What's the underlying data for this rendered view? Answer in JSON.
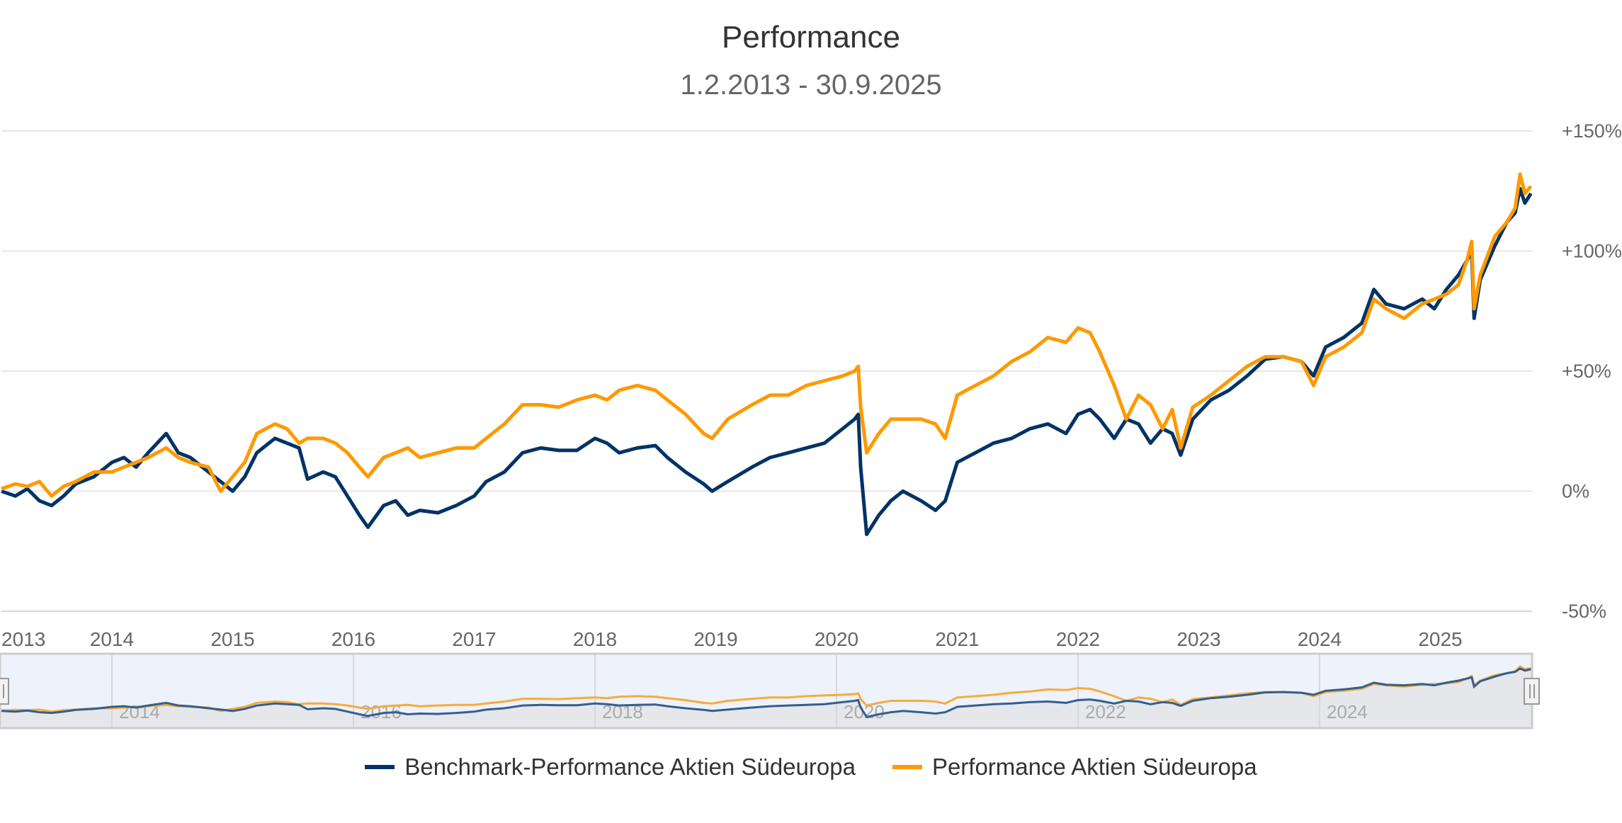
{
  "chart_data": {
    "type": "line",
    "title": "Performance",
    "subtitle": "1.2.2013 - 30.9.2025",
    "xlabel": "",
    "ylabel": "",
    "x_range": [
      2013.085,
      2025.75
    ],
    "ylim": [
      -50,
      150
    ],
    "y_ticks": [
      {
        "value": 150,
        "label": "+150%"
      },
      {
        "value": 100,
        "label": "+100%"
      },
      {
        "value": 50,
        "label": "+50%"
      },
      {
        "value": 0,
        "label": "0%"
      },
      {
        "value": -50,
        "label": "-50%"
      }
    ],
    "x_ticks": [
      "2013",
      "2014",
      "2015",
      "2016",
      "2017",
      "2018",
      "2019",
      "2020",
      "2021",
      "2022",
      "2023",
      "2024",
      "2025"
    ],
    "navigator_ticks": [
      "2014",
      "2016",
      "2018",
      "2020",
      "2022",
      "2024"
    ],
    "grid": true,
    "legend_position": "bottom-center",
    "series": [
      {
        "name": "Benchmark-Performance Aktien Südeuropa",
        "color": "#003366",
        "x": [
          2013.085,
          2013.2,
          2013.3,
          2013.4,
          2013.5,
          2013.6,
          2013.7,
          2013.85,
          2014.0,
          2014.1,
          2014.2,
          2014.3,
          2014.45,
          2014.55,
          2014.65,
          2014.8,
          2014.9,
          2015.0,
          2015.1,
          2015.2,
          2015.35,
          2015.45,
          2015.55,
          2015.62,
          2015.75,
          2015.85,
          2015.95,
          2016.05,
          2016.12,
          2016.25,
          2016.35,
          2016.45,
          2016.55,
          2016.7,
          2016.85,
          2017.0,
          2017.1,
          2017.25,
          2017.4,
          2017.55,
          2017.7,
          2017.85,
          2018.0,
          2018.1,
          2018.2,
          2018.35,
          2018.5,
          2018.6,
          2018.75,
          2018.9,
          2018.97,
          2019.1,
          2019.3,
          2019.45,
          2019.6,
          2019.75,
          2019.9,
          2020.05,
          2020.15,
          2020.18,
          2020.2,
          2020.25,
          2020.35,
          2020.45,
          2020.55,
          2020.7,
          2020.82,
          2020.9,
          2021.0,
          2021.15,
          2021.3,
          2021.45,
          2021.6,
          2021.75,
          2021.9,
          2022.0,
          2022.1,
          2022.18,
          2022.3,
          2022.4,
          2022.5,
          2022.6,
          2022.7,
          2022.78,
          2022.85,
          2022.95,
          2023.1,
          2023.25,
          2023.4,
          2023.55,
          2023.7,
          2023.85,
          2023.95,
          2024.05,
          2024.2,
          2024.35,
          2024.45,
          2024.55,
          2024.7,
          2024.85,
          2024.95,
          2025.05,
          2025.15,
          2025.22,
          2025.26,
          2025.28,
          2025.33,
          2025.45,
          2025.55,
          2025.62,
          2025.66,
          2025.7,
          2025.75
        ],
        "values": [
          0,
          -2,
          1,
          -4,
          -6,
          -2,
          3,
          6,
          12,
          14,
          10,
          16,
          24,
          16,
          14,
          8,
          4,
          0,
          6,
          16,
          22,
          20,
          18,
          5,
          8,
          6,
          -2,
          -10,
          -15,
          -6,
          -4,
          -10,
          -8,
          -9,
          -6,
          -2,
          4,
          8,
          16,
          18,
          17,
          17,
          22,
          20,
          16,
          18,
          19,
          14,
          8,
          3,
          0,
          4,
          10,
          14,
          16,
          18,
          20,
          26,
          30,
          32,
          10,
          -18,
          -10,
          -4,
          0,
          -4,
          -8,
          -4,
          12,
          16,
          20,
          22,
          26,
          28,
          24,
          32,
          34,
          30,
          22,
          30,
          28,
          20,
          26,
          24,
          15,
          30,
          38,
          42,
          48,
          55,
          56,
          54,
          48,
          60,
          64,
          70,
          84,
          78,
          76,
          80,
          76,
          84,
          90,
          96,
          100,
          72,
          88,
          102,
          112,
          116,
          126,
          120,
          124
        ]
      },
      {
        "name": "Performance Aktien Südeuropa",
        "color": "#FF9900",
        "x": [
          2013.085,
          2013.2,
          2013.3,
          2013.4,
          2013.5,
          2013.6,
          2013.7,
          2013.85,
          2014.0,
          2014.1,
          2014.2,
          2014.3,
          2014.45,
          2014.55,
          2014.65,
          2014.8,
          2014.9,
          2015.0,
          2015.1,
          2015.2,
          2015.35,
          2015.45,
          2015.55,
          2015.62,
          2015.75,
          2015.85,
          2015.95,
          2016.05,
          2016.12,
          2016.25,
          2016.35,
          2016.45,
          2016.55,
          2016.7,
          2016.85,
          2017.0,
          2017.1,
          2017.25,
          2017.4,
          2017.55,
          2017.7,
          2017.85,
          2018.0,
          2018.1,
          2018.2,
          2018.35,
          2018.5,
          2018.6,
          2018.75,
          2018.9,
          2018.97,
          2019.1,
          2019.3,
          2019.45,
          2019.6,
          2019.75,
          2019.9,
          2020.05,
          2020.15,
          2020.18,
          2020.2,
          2020.25,
          2020.35,
          2020.45,
          2020.55,
          2020.7,
          2020.82,
          2020.9,
          2021.0,
          2021.15,
          2021.3,
          2021.45,
          2021.6,
          2021.75,
          2021.9,
          2022.0,
          2022.1,
          2022.18,
          2022.3,
          2022.4,
          2022.5,
          2022.6,
          2022.7,
          2022.78,
          2022.85,
          2022.95,
          2023.1,
          2023.25,
          2023.4,
          2023.55,
          2023.7,
          2023.85,
          2023.95,
          2024.05,
          2024.2,
          2024.35,
          2024.45,
          2024.55,
          2024.7,
          2024.85,
          2024.95,
          2025.05,
          2025.15,
          2025.22,
          2025.26,
          2025.28,
          2025.33,
          2025.45,
          2025.55,
          2025.62,
          2025.66,
          2025.7,
          2025.75
        ],
        "values": [
          1,
          3,
          2,
          4,
          -2,
          2,
          4,
          8,
          8,
          10,
          12,
          14,
          18,
          14,
          12,
          10,
          0,
          6,
          12,
          24,
          28,
          26,
          20,
          22,
          22,
          20,
          16,
          10,
          6,
          14,
          16,
          18,
          14,
          16,
          18,
          18,
          22,
          28,
          36,
          36,
          35,
          38,
          40,
          38,
          42,
          44,
          42,
          38,
          32,
          24,
          22,
          30,
          36,
          40,
          40,
          44,
          46,
          48,
          50,
          52,
          35,
          16,
          24,
          30,
          30,
          30,
          28,
          22,
          40,
          44,
          48,
          54,
          58,
          64,
          62,
          68,
          66,
          58,
          44,
          30,
          40,
          36,
          26,
          34,
          18,
          35,
          40,
          46,
          52,
          56,
          56,
          54,
          44,
          56,
          60,
          66,
          80,
          76,
          72,
          78,
          80,
          82,
          86,
          96,
          104,
          76,
          90,
          106,
          112,
          118,
          132,
          124,
          127
        ]
      }
    ]
  },
  "legend": {
    "items": [
      {
        "label": "Benchmark-Performance Aktien Südeuropa",
        "color": "#003366"
      },
      {
        "label": "Performance Aktien Südeuropa",
        "color": "#FF9900"
      }
    ]
  },
  "navigator": {
    "left_handle_icon": "drag-handle-icon",
    "right_handle_icon": "drag-handle-icon"
  }
}
